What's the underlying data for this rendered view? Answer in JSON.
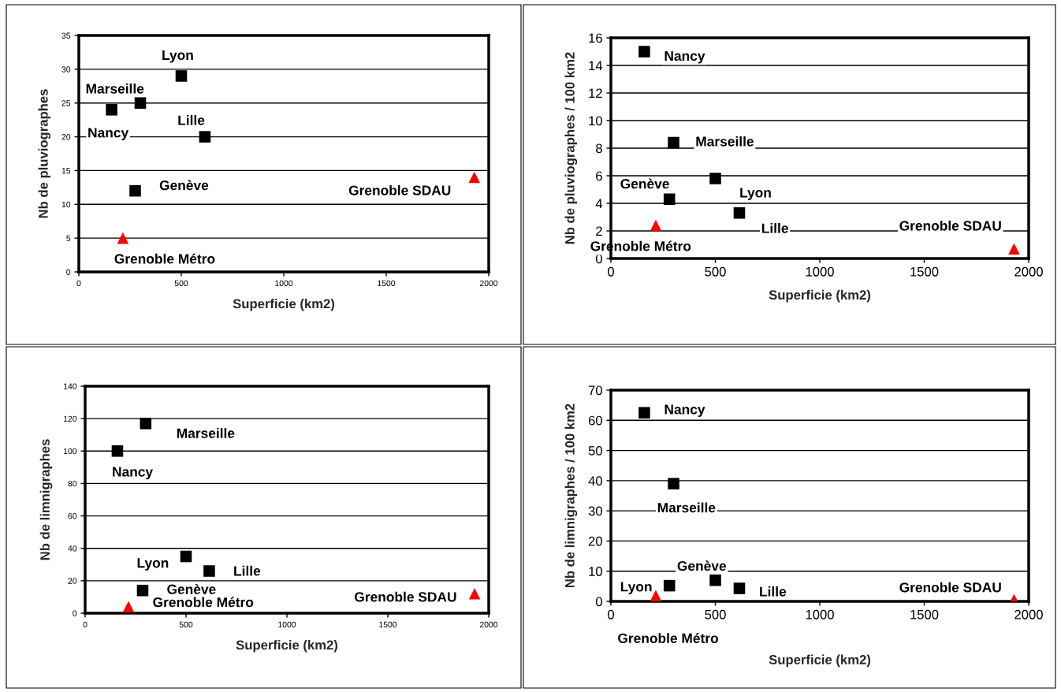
{
  "chart_data": [
    {
      "type": "scatter",
      "xlabel": "Superficie (km2)",
      "ylabel": "Nb de pluviographes",
      "xlim": [
        0,
        2000
      ],
      "xticks": [
        0,
        500,
        1000,
        1500,
        2000
      ],
      "ylim": [
        0,
        35
      ],
      "yticks": [
        0,
        5,
        10,
        15,
        20,
        25,
        30,
        35
      ],
      "grid": "y",
      "series": [
        {
          "color": "#000000",
          "marker": "square",
          "x": [
            160,
            300,
            500,
            615,
            275
          ],
          "values": [
            24,
            25,
            29,
            20,
            12
          ]
        },
        {
          "color": "#ff0000",
          "marker": "triangle",
          "x": [
            215,
            1930
          ],
          "values": [
            5,
            14
          ]
        }
      ],
      "annotations": [
        {
          "text": "Nancy",
          "x": 160,
          "y": 24
        },
        {
          "text": "Marseille",
          "x": 300,
          "y": 25
        },
        {
          "text": "Lyon",
          "x": 500,
          "y": 29
        },
        {
          "text": "Lille",
          "x": 615,
          "y": 20
        },
        {
          "text": "Genève",
          "x": 275,
          "y": 12
        },
        {
          "text": "Grenoble Métro",
          "x": 215,
          "y": 5
        },
        {
          "text": "Grenoble SDAU",
          "x": 1930,
          "y": 14
        }
      ]
    },
    {
      "type": "scatter",
      "xlabel": "Superficie (km2)",
      "ylabel": "Nb de pluviographes / 100 km2",
      "xlim": [
        0,
        2000
      ],
      "xticks": [
        0,
        500,
        1000,
        1500,
        2000
      ],
      "ylim": [
        0,
        16
      ],
      "yticks": [
        0,
        2,
        4,
        6,
        8,
        10,
        12,
        14,
        16
      ],
      "grid": "y",
      "series": [
        {
          "color": "#000000",
          "marker": "square",
          "x": [
            160,
            300,
            500,
            615,
            280
          ],
          "values": [
            15,
            8.4,
            5.8,
            3.3,
            4.3
          ]
        },
        {
          "color": "#ff0000",
          "marker": "triangle",
          "x": [
            215,
            1930
          ],
          "values": [
            2.4,
            0.7
          ]
        }
      ],
      "annotations": [
        {
          "text": "Nancy",
          "x": 160,
          "y": 15
        },
        {
          "text": "Marseille",
          "x": 300,
          "y": 8.4
        },
        {
          "text": "Lyon",
          "x": 500,
          "y": 5.8
        },
        {
          "text": "Lille",
          "x": 615,
          "y": 3.3
        },
        {
          "text": "Genève",
          "x": 280,
          "y": 4.3
        },
        {
          "text": "Grenoble Métro",
          "x": 215,
          "y": 2.4
        },
        {
          "text": "Grenoble SDAU",
          "x": 1930,
          "y": 0.7
        }
      ]
    },
    {
      "type": "scatter",
      "xlabel": "Superficie (km2)",
      "ylabel": "Nb de limnigraphes",
      "xlim": [
        0,
        2000
      ],
      "xticks": [
        0,
        500,
        1000,
        1500,
        2000
      ],
      "ylim": [
        0,
        140
      ],
      "yticks": [
        0,
        20,
        40,
        60,
        80,
        100,
        120,
        140
      ],
      "grid": "y",
      "series": [
        {
          "color": "#000000",
          "marker": "square",
          "x": [
            160,
            300,
            500,
            615,
            285
          ],
          "values": [
            100,
            117,
            35,
            26,
            14
          ]
        },
        {
          "color": "#ff0000",
          "marker": "triangle",
          "x": [
            215,
            1930
          ],
          "values": [
            4,
            12
          ]
        }
      ],
      "annotations": [
        {
          "text": "Nancy",
          "x": 160,
          "y": 100
        },
        {
          "text": "Marseille",
          "x": 300,
          "y": 117
        },
        {
          "text": "Lyon",
          "x": 500,
          "y": 35
        },
        {
          "text": "Lille",
          "x": 615,
          "y": 26
        },
        {
          "text": "Genève",
          "x": 285,
          "y": 14
        },
        {
          "text": "Grenoble Métro",
          "x": 215,
          "y": 4
        },
        {
          "text": "Grenoble SDAU",
          "x": 1930,
          "y": 12
        }
      ]
    },
    {
      "type": "scatter",
      "xlabel": "Superficie (km2)",
      "ylabel": "Nb de limnigraphes / 100 km2",
      "xlim": [
        0,
        2000
      ],
      "xticks": [
        0,
        500,
        1000,
        1500,
        2000
      ],
      "ylim": [
        0,
        70
      ],
      "yticks": [
        0,
        10,
        20,
        30,
        40,
        50,
        60,
        70
      ],
      "grid": "y",
      "series": [
        {
          "color": "#000000",
          "marker": "square",
          "x": [
            160,
            300,
            280,
            615,
            500
          ],
          "values": [
            62.5,
            39,
            5.2,
            4.3,
            7
          ]
        },
        {
          "color": "#ff0000",
          "marker": "triangle",
          "x": [
            215,
            1930
          ],
          "values": [
            1.9,
            0.6
          ]
        }
      ],
      "annotations": [
        {
          "text": "Nancy",
          "x": 160,
          "y": 62.5
        },
        {
          "text": "Marseille",
          "x": 300,
          "y": 39
        },
        {
          "text": "Lyon",
          "x": 280,
          "y": 5.2
        },
        {
          "text": "Lille",
          "x": 615,
          "y": 4.3
        },
        {
          "text": "Genève",
          "x": 500,
          "y": 7
        },
        {
          "text": "Grenoble Métro",
          "x": 215,
          "y": 1.9
        },
        {
          "text": "Grenoble SDAU",
          "x": 1930,
          "y": 0.6
        }
      ]
    }
  ]
}
